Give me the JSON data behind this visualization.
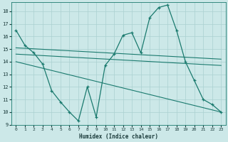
{
  "xlabel": "Humidex (Indice chaleur)",
  "bg_color": "#cce8e8",
  "grid_color": "#aad0d0",
  "line_color": "#1a7a6e",
  "xlim": [
    -0.5,
    23.5
  ],
  "ylim": [
    9,
    18.7
  ],
  "yticks": [
    9,
    10,
    11,
    12,
    13,
    14,
    15,
    16,
    17,
    18
  ],
  "xticks": [
    0,
    1,
    2,
    3,
    4,
    5,
    6,
    7,
    8,
    9,
    10,
    11,
    12,
    13,
    14,
    15,
    16,
    17,
    18,
    19,
    20,
    21,
    22,
    23
  ],
  "line1_x": [
    0,
    1,
    2,
    3,
    4,
    5,
    6,
    7,
    8,
    9,
    10,
    11,
    12,
    13,
    14,
    15,
    16,
    17,
    18,
    19,
    20,
    21,
    22,
    23
  ],
  "line1_y": [
    16.5,
    15.3,
    14.7,
    13.8,
    11.7,
    10.8,
    10.0,
    9.3,
    12.0,
    9.6,
    13.7,
    14.6,
    16.1,
    16.3,
    14.7,
    17.5,
    18.3,
    18.5,
    16.5,
    14.0,
    12.5,
    11.0,
    10.6,
    10.0
  ],
  "line2_x": [
    0,
    23
  ],
  "line2_y": [
    15.1,
    14.2
  ],
  "line3_x": [
    0,
    23
  ],
  "line3_y": [
    14.6,
    13.7
  ],
  "line4_x": [
    0,
    23
  ],
  "line4_y": [
    14.0,
    10.0
  ]
}
